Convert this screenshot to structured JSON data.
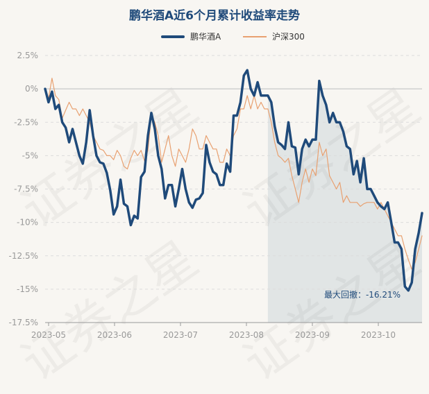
{
  "chart_data": {
    "type": "line",
    "title": "鹏华酒A近6个月累计收益率走势",
    "x_ticks": [
      "2023-05",
      "2023-06",
      "2023-07",
      "2023-08",
      "2023-09",
      "2023-10"
    ],
    "ylim": [
      -17.5,
      2.5
    ],
    "y_ticks": [
      "2.5%",
      "0%",
      "-2.5%",
      "-5%",
      "-7.5%",
      "-10%",
      "-12.5%",
      "-15%",
      "-17.5%"
    ],
    "y_tick_values": [
      2.5,
      0,
      -2.5,
      -5,
      -7.5,
      -10,
      -12.5,
      -15,
      -17.5
    ],
    "legend_position": "top-center",
    "drawdown_label": "最大回撤：-16.21%",
    "drawdown_start_index": 65,
    "series": [
      {
        "name": "鹏华酒A",
        "color": "#1f4a7a",
        "values": [
          0.0,
          -1.0,
          -0.2,
          -1.5,
          -1.2,
          -2.5,
          -2.9,
          -4.0,
          -3.0,
          -4.0,
          -5.0,
          -5.6,
          -4.0,
          -1.6,
          -3.5,
          -5.0,
          -5.5,
          -5.6,
          -6.3,
          -7.6,
          -9.4,
          -8.8,
          -6.8,
          -8.6,
          -8.8,
          -10.2,
          -9.5,
          -9.7,
          -6.6,
          -6.2,
          -3.5,
          -1.8,
          -3.0,
          -5.0,
          -6.0,
          -8.2,
          -7.2,
          -7.2,
          -8.8,
          -7.5,
          -6.0,
          -7.5,
          -8.5,
          -8.9,
          -8.3,
          -8.2,
          -7.8,
          -4.2,
          -5.5,
          -6.2,
          -6.4,
          -7.2,
          -7.2,
          -5.6,
          -6.2,
          -2.0,
          -2.0,
          -1.0,
          1.0,
          1.4,
          0.0,
          -0.5,
          0.5,
          -0.5,
          -0.5,
          -0.5,
          -1.0,
          -2.8,
          -4.0,
          -4.2,
          -4.5,
          -2.5,
          -4.3,
          -4.4,
          -6.4,
          -4.5,
          -3.8,
          -4.3,
          -3.8,
          -3.8,
          0.6,
          -0.5,
          -1.2,
          -2.5,
          -1.8,
          -2.5,
          -2.5,
          -3.2,
          -4.3,
          -4.5,
          -6.4,
          -5.4,
          -7.0,
          -5.2,
          -7.5,
          -7.5,
          -8.0,
          -8.5,
          -8.8,
          -9.0,
          -8.5,
          -10.0,
          -11.5,
          -11.5,
          -12.0,
          -14.8,
          -15.1,
          -14.5,
          -12.0,
          -10.8,
          -9.3
        ]
      },
      {
        "name": "沪深300",
        "color": "#e8a070",
        "values": [
          0.0,
          -0.7,
          0.8,
          -0.5,
          -0.8,
          -2.2,
          -1.6,
          -1.0,
          -1.5,
          -1.5,
          -2.0,
          -1.5,
          -2.0,
          -2.5,
          -3.5,
          -4.0,
          -4.5,
          -4.6,
          -5.0,
          -5.0,
          -5.3,
          -4.6,
          -5.0,
          -5.8,
          -6.0,
          -5.2,
          -4.6,
          -5.0,
          -4.6,
          -5.4,
          -4.6,
          -2.0,
          -2.5,
          -3.5,
          -5.5,
          -4.5,
          -3.5,
          -5.0,
          -5.8,
          -4.5,
          -5.0,
          -5.5,
          -4.5,
          -3.0,
          -3.5,
          -4.5,
          -4.5,
          -3.5,
          -4.0,
          -4.5,
          -4.5,
          -5.5,
          -5.5,
          -4.5,
          -5.0,
          -3.5,
          -3.0,
          -1.5,
          -1.5,
          -0.5,
          -1.5,
          -0.5,
          -1.5,
          -1.0,
          -1.5,
          -1.5,
          -2.5,
          -4.0,
          -5.0,
          -5.2,
          -5.5,
          -5.2,
          -6.5,
          -7.5,
          -8.5,
          -7.0,
          -6.0,
          -7.0,
          -6.0,
          -6.5,
          -4.0,
          -5.0,
          -4.5,
          -6.5,
          -7.0,
          -7.5,
          -7.0,
          -8.5,
          -8.0,
          -8.5,
          -8.5,
          -8.5,
          -8.8,
          -8.6,
          -8.5,
          -8.5,
          -8.5,
          -9.0,
          -8.5,
          -9.0,
          -9.5,
          -10.0,
          -10.5,
          -11.0,
          -11.0,
          -12.0,
          -12.8,
          -13.5,
          -13.0,
          -12.0,
          -11.0
        ]
      }
    ]
  },
  "watermark_text": "证券之星"
}
